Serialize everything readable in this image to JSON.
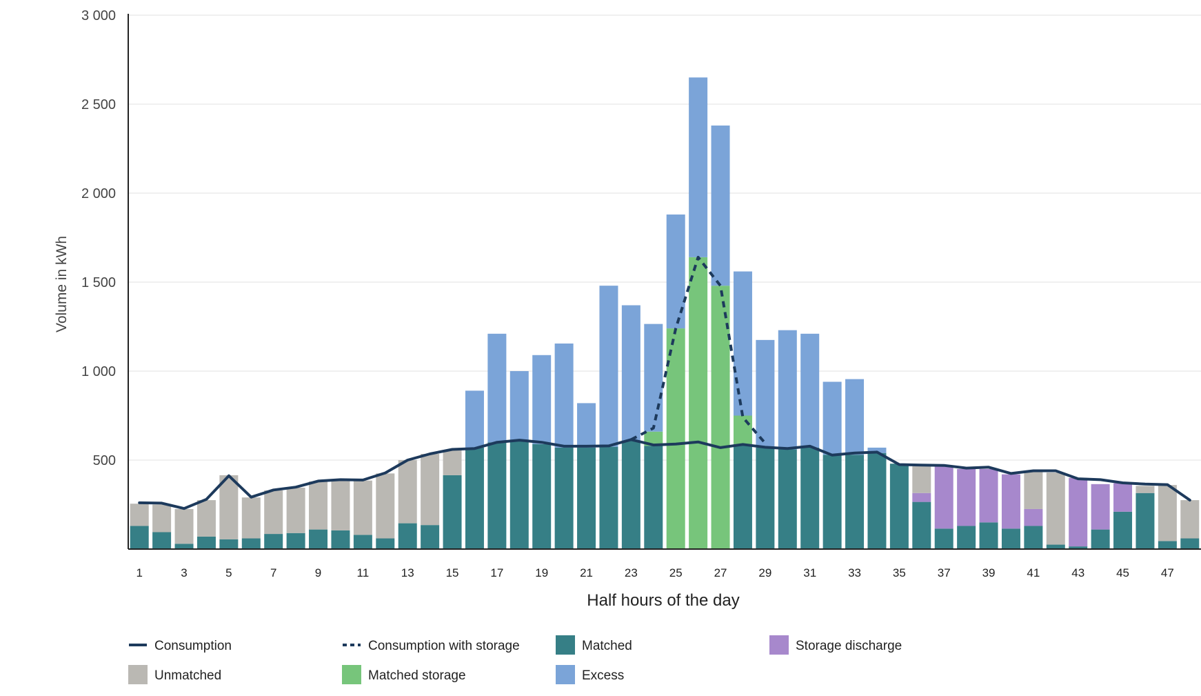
{
  "chart_data": {
    "type": "bar",
    "stacked": true,
    "xlabel": "Half hours of the day",
    "ylabel": "Volume in kWh",
    "ylim": [
      0,
      3000
    ],
    "yticks": [
      500,
      1000,
      1500,
      2000,
      2500,
      3000
    ],
    "ytick_labels": [
      "500",
      "1 000",
      "1 500",
      "2 000",
      "2 500",
      "3 000"
    ],
    "categories": [
      1,
      2,
      3,
      4,
      5,
      6,
      7,
      8,
      9,
      10,
      11,
      12,
      13,
      14,
      15,
      16,
      17,
      18,
      19,
      20,
      21,
      22,
      23,
      24,
      25,
      26,
      27,
      28,
      29,
      30,
      31,
      32,
      33,
      34,
      35,
      36,
      37,
      38,
      39,
      40,
      41,
      42,
      43,
      44,
      45,
      46,
      47,
      48
    ],
    "xtick_labels": [
      "1",
      "3",
      "5",
      "7",
      "9",
      "11",
      "13",
      "15",
      "17",
      "19",
      "21",
      "23",
      "25",
      "27",
      "29",
      "31",
      "33",
      "35",
      "37",
      "39",
      "41",
      "43",
      "45",
      "47"
    ],
    "grid": true,
    "legend_position": "bottom",
    "series": [
      {
        "name": "Matched",
        "kind": "bar",
        "color": "#367f86",
        "values": [
          130,
          95,
          30,
          70,
          55,
          60,
          85,
          90,
          110,
          105,
          80,
          60,
          145,
          135,
          415,
          570,
          600,
          605,
          590,
          570,
          570,
          575,
          610,
          580,
          0,
          0,
          0,
          590,
          570,
          560,
          570,
          530,
          530,
          540,
          480,
          265,
          115,
          130,
          150,
          115,
          130,
          25,
          15,
          110,
          210,
          315,
          45,
          60
        ]
      },
      {
        "name": "Matched storage",
        "kind": "bar",
        "color": "#77c57b",
        "values": [
          0,
          0,
          0,
          0,
          0,
          0,
          0,
          0,
          0,
          0,
          0,
          0,
          0,
          0,
          0,
          0,
          0,
          0,
          0,
          0,
          0,
          0,
          0,
          80,
          1240,
          1640,
          1480,
          160,
          0,
          0,
          0,
          0,
          0,
          0,
          0,
          0,
          0,
          0,
          0,
          0,
          0,
          0,
          0,
          0,
          0,
          0,
          0,
          0
        ]
      },
      {
        "name": "Storage discharge",
        "kind": "bar",
        "color": "#a788cc",
        "values": [
          0,
          0,
          0,
          0,
          0,
          0,
          0,
          0,
          0,
          0,
          0,
          0,
          0,
          0,
          0,
          0,
          0,
          0,
          0,
          0,
          0,
          0,
          0,
          0,
          0,
          0,
          0,
          0,
          0,
          0,
          0,
          0,
          0,
          0,
          0,
          50,
          355,
          320,
          300,
          305,
          95,
          0,
          385,
          255,
          160,
          0,
          0,
          0
        ]
      },
      {
        "name": "Unmatched",
        "kind": "bar",
        "color": "#bab8b3",
        "values": [
          125,
          155,
          195,
          205,
          360,
          230,
          245,
          255,
          270,
          280,
          305,
          365,
          355,
          400,
          140,
          0,
          0,
          0,
          0,
          0,
          0,
          0,
          0,
          0,
          0,
          0,
          0,
          0,
          0,
          0,
          0,
          0,
          0,
          0,
          0,
          150,
          0,
          0,
          0,
          0,
          210,
          405,
          0,
          0,
          0,
          40,
          315,
          215
        ]
      },
      {
        "name": "Excess",
        "kind": "bar",
        "color": "#7ba4d8",
        "values": [
          0,
          0,
          0,
          0,
          0,
          0,
          0,
          0,
          0,
          0,
          0,
          0,
          0,
          0,
          0,
          320,
          610,
          395,
          500,
          585,
          250,
          905,
          760,
          605,
          640,
          1010,
          900,
          810,
          605,
          670,
          640,
          410,
          425,
          30,
          0,
          0,
          0,
          0,
          0,
          0,
          0,
          0,
          0,
          0,
          0,
          0,
          0,
          0
        ]
      },
      {
        "name": "Consumption",
        "kind": "line",
        "color": "#1d3a5c",
        "values": [
          260,
          258,
          228,
          280,
          412,
          292,
          332,
          348,
          382,
          390,
          388,
          428,
          500,
          535,
          560,
          565,
          600,
          612,
          600,
          578,
          578,
          580,
          615,
          585,
          590,
          602,
          570,
          588,
          572,
          565,
          578,
          528,
          540,
          545,
          475,
          472,
          470,
          455,
          460,
          425,
          440,
          440,
          395,
          390,
          372,
          365,
          362,
          275
        ]
      },
      {
        "name": "Consumption with storage",
        "kind": "dashed-line",
        "color": "#1d3a5c",
        "x": [
          23,
          24,
          25,
          26,
          27,
          28,
          29
        ],
        "values": [
          615,
          680,
          1240,
          1640,
          1480,
          740,
          595
        ]
      }
    ]
  },
  "legend": {
    "consumption": "Consumption",
    "consumption_storage": "Consumption with storage",
    "matched": "Matched",
    "storage_discharge": "Storage discharge",
    "unmatched": "Unmatched",
    "matched_storage": "Matched storage",
    "excess": "Excess"
  }
}
